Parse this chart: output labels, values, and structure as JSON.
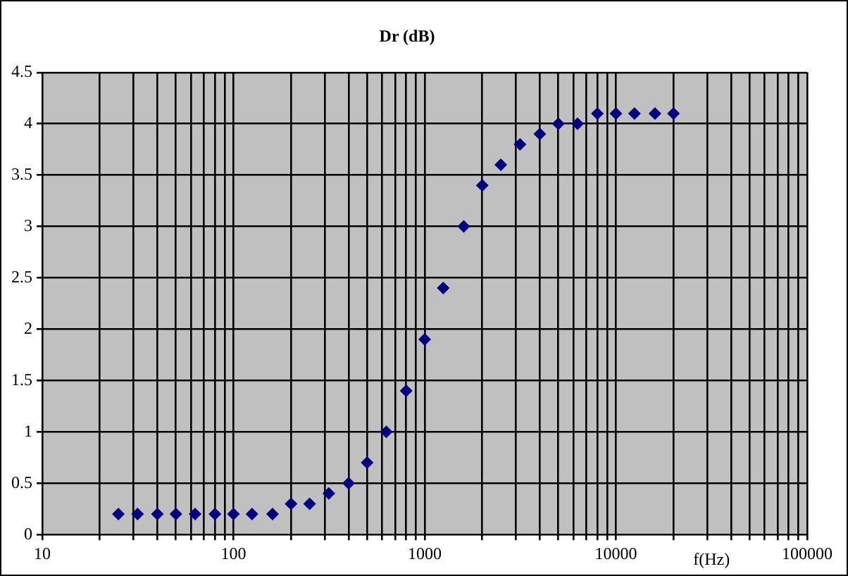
{
  "chart_data": {
    "type": "scatter",
    "title": "Dr (dB)",
    "xlabel": "f(Hz)",
    "log": "x",
    "grid": true,
    "marker": "diamond",
    "legend": false,
    "xlim": [
      10,
      100000
    ],
    "xticks": [
      10,
      100,
      1000,
      10000,
      100000
    ],
    "ylim": [
      0,
      4.5
    ],
    "yticks": [
      0,
      0.5,
      1,
      1.5,
      2,
      2.5,
      3,
      3.5,
      4,
      4.5
    ],
    "series": [
      {
        "color": "#000080",
        "x": [
          25,
          31.5,
          40,
          50,
          63,
          80,
          100,
          125,
          160,
          200,
          250,
          315,
          400,
          500,
          630,
          800,
          1000,
          1250,
          1600,
          2000,
          2500,
          3150,
          4000,
          5000,
          6300,
          8000,
          10000,
          12500,
          16000,
          20000
        ],
        "values": [
          0.2,
          0.2,
          0.2,
          0.2,
          0.2,
          0.2,
          0.2,
          0.2,
          0.2,
          0.3,
          0.3,
          0.4,
          0.5,
          0.7,
          1.0,
          1.4,
          1.9,
          2.4,
          3.0,
          3.4,
          3.6,
          3.8,
          3.9,
          4.0,
          4.0,
          4.1,
          4.1,
          4.1,
          4.1,
          4.1
        ]
      }
    ]
  }
}
